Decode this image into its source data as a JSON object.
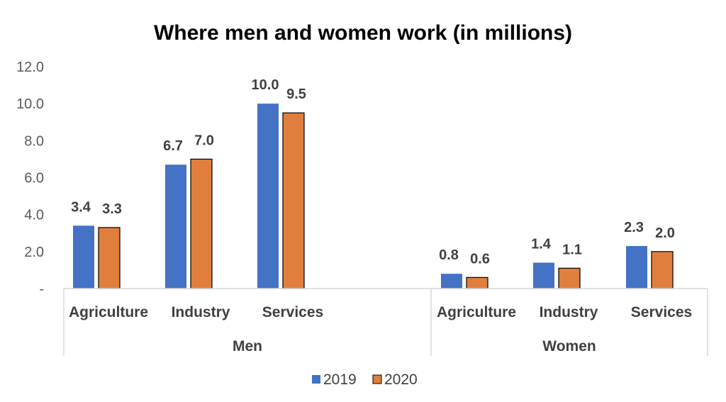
{
  "chart_data": {
    "type": "bar",
    "title": "Where men and women work (in millions)",
    "ylim": [
      0,
      12
    ],
    "yticks": [
      "-",
      "2.0",
      "4.0",
      "6.0",
      "8.0",
      "10.0",
      "12.0"
    ],
    "groups": [
      {
        "name": "Men",
        "categories": [
          "Agriculture",
          "Industry",
          "Services"
        ],
        "values": {
          "2019": [
            3.4,
            6.7,
            10.0
          ],
          "2020": [
            3.3,
            7.0,
            9.5
          ]
        }
      },
      {
        "name": "Women",
        "categories": [
          "Agriculture",
          "Industry",
          "Services"
        ],
        "values": {
          "2019": [
            0.8,
            1.4,
            2.3
          ],
          "2020": [
            0.6,
            1.1,
            2.0
          ]
        }
      }
    ],
    "series": [
      {
        "name": "2019",
        "color": "#4472C4"
      },
      {
        "name": "2020",
        "color": "#E07E3E"
      }
    ],
    "grid": false,
    "legend": "bottom"
  }
}
